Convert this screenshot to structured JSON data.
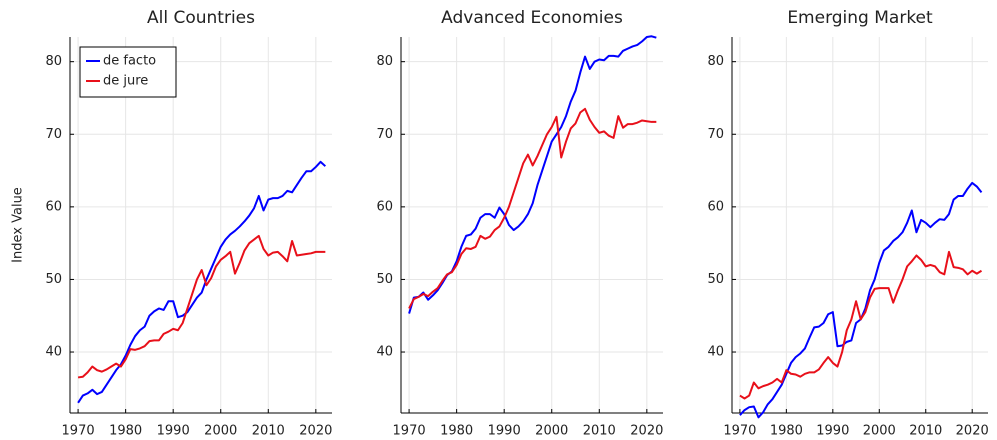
{
  "chart_data": [
    {
      "type": "line",
      "title": "All Countries",
      "ylabel": "Index Value",
      "x": [
        1970,
        1971,
        1972,
        1973,
        1974,
        1975,
        1976,
        1977,
        1978,
        1979,
        1980,
        1981,
        1982,
        1983,
        1984,
        1985,
        1986,
        1987,
        1988,
        1989,
        1990,
        1991,
        1992,
        1993,
        1994,
        1995,
        1996,
        1997,
        1998,
        1999,
        2000,
        2001,
        2002,
        2003,
        2004,
        2005,
        2006,
        2007,
        2008,
        2009,
        2010,
        2011,
        2012,
        2013,
        2014,
        2015,
        2016,
        2017,
        2018,
        2019,
        2020,
        2021,
        2022
      ],
      "series": [
        {
          "name": "de facto",
          "color": "#0000ff",
          "values": [
            33,
            34,
            34.3,
            34.8,
            34.2,
            34.5,
            35.5,
            36.5,
            37.5,
            38.3,
            39.5,
            41,
            42.2,
            43,
            43.5,
            45,
            45.6,
            46,
            45.8,
            47,
            47,
            44.8,
            45,
            45.5,
            46.5,
            47.5,
            48.2,
            50,
            51.5,
            53,
            54.5,
            55.5,
            56.2,
            56.7,
            57.3,
            58,
            58.8,
            59.8,
            61.5,
            59.5,
            61,
            61.2,
            61.2,
            61.5,
            62.2,
            62,
            63,
            64,
            64.9,
            64.9,
            65.5,
            66.2,
            65.6
          ]
        },
        {
          "name": "de jure",
          "color": "#e8101a",
          "values": [
            36.5,
            36.6,
            37.2,
            38,
            37.5,
            37.3,
            37.6,
            38,
            38.4,
            38,
            39,
            40.4,
            40.3,
            40.5,
            40.8,
            41.5,
            41.6,
            41.6,
            42.5,
            42.8,
            43.2,
            43,
            44,
            46,
            48,
            50,
            51.3,
            49.2,
            50.2,
            51.8,
            52.7,
            53.2,
            53.8,
            50.8,
            52.3,
            54,
            55,
            55.5,
            56,
            54.2,
            53.3,
            53.7,
            53.8,
            53.2,
            52.5,
            55.3,
            53.3,
            53.4,
            53.5,
            53.6,
            53.8,
            53.8,
            53.8
          ]
        }
      ],
      "xlim": [
        1968.3,
        2023.4
      ],
      "xticks": [
        1970,
        1980,
        1990,
        2000,
        2010,
        2020
      ],
      "ylim": [
        31.6,
        83.4
      ],
      "yticks": [
        40,
        50,
        60,
        70,
        80
      ],
      "grid": true,
      "legend": "top-left"
    },
    {
      "type": "line",
      "title": "Advanced Economies",
      "x": [
        1970,
        1971,
        1972,
        1973,
        1974,
        1975,
        1976,
        1977,
        1978,
        1979,
        1980,
        1981,
        1982,
        1983,
        1984,
        1985,
        1986,
        1987,
        1988,
        1989,
        1990,
        1991,
        1992,
        1993,
        1994,
        1995,
        1996,
        1997,
        1998,
        1999,
        2000,
        2001,
        2002,
        2003,
        2004,
        2005,
        2006,
        2007,
        2008,
        2009,
        2010,
        2011,
        2012,
        2013,
        2014,
        2015,
        2016,
        2017,
        2018,
        2019,
        2020,
        2021,
        2022
      ],
      "series": [
        {
          "name": "de facto",
          "color": "#0000ff",
          "values": [
            45.3,
            47.5,
            47.6,
            48.2,
            47.2,
            47.8,
            48.5,
            49.5,
            50.6,
            51.1,
            52.5,
            54.5,
            56,
            56.2,
            57,
            58.5,
            59,
            59,
            58.5,
            59.9,
            59,
            57.5,
            56.8,
            57.3,
            58,
            59,
            60.5,
            63,
            65,
            67,
            69,
            70,
            71,
            72.5,
            74.5,
            76,
            78.5,
            80.7,
            79,
            80,
            80.3,
            80.2,
            80.8,
            80.8,
            80.7,
            81.5,
            81.8,
            82.1,
            82.3,
            82.8,
            83.4,
            83.5,
            83.3
          ]
        },
        {
          "name": "de jure",
          "color": "#e8101a",
          "values": [
            46,
            47.3,
            47.6,
            48,
            47.7,
            48.3,
            48.8,
            49.8,
            50.7,
            51,
            52,
            53.5,
            54.3,
            54.2,
            54.5,
            56,
            55.6,
            55.9,
            56.8,
            57.3,
            58.5,
            60,
            62,
            64,
            66,
            67.2,
            65.7,
            67,
            68.5,
            70,
            71,
            72.4,
            66.8,
            69,
            70.8,
            71.5,
            73,
            73.5,
            72,
            71,
            70.2,
            70.4,
            69.8,
            69.5,
            72.5,
            70.9,
            71.4,
            71.4,
            71.6,
            71.9,
            71.8,
            71.7,
            71.7
          ]
        }
      ],
      "xlim": [
        1968.3,
        2023.4
      ],
      "xticks": [
        1970,
        1980,
        1990,
        2000,
        2010,
        2020
      ],
      "ylim": [
        31.6,
        83.4
      ],
      "yticks": [
        40,
        50,
        60,
        70,
        80
      ],
      "grid": true
    },
    {
      "type": "line",
      "title": "Emerging Market",
      "x": [
        1970,
        1971,
        1972,
        1973,
        1974,
        1975,
        1976,
        1977,
        1978,
        1979,
        1980,
        1981,
        1982,
        1983,
        1984,
        1985,
        1986,
        1987,
        1988,
        1989,
        1990,
        1991,
        1992,
        1993,
        1994,
        1995,
        1996,
        1997,
        1998,
        1999,
        2000,
        2001,
        2002,
        2003,
        2004,
        2005,
        2006,
        2007,
        2008,
        2009,
        2010,
        2011,
        2012,
        2013,
        2014,
        2015,
        2016,
        2017,
        2018,
        2019,
        2020,
        2021,
        2022
      ],
      "series": [
        {
          "name": "de facto",
          "color": "#0000ff",
          "values": [
            31.3,
            32,
            32.4,
            32.5,
            31,
            31.7,
            32.8,
            33.5,
            34.5,
            35.5,
            37,
            38.5,
            39.3,
            39.8,
            40.5,
            42,
            43.4,
            43.5,
            44,
            45.2,
            45.5,
            40.8,
            40.9,
            41.4,
            41.6,
            44,
            44.5,
            46,
            48.5,
            50,
            52.3,
            54,
            54.5,
            55.3,
            55.8,
            56.5,
            57.8,
            59.5,
            56.5,
            58.2,
            57.8,
            57.2,
            57.8,
            58.3,
            58.2,
            59,
            61,
            61.5,
            61.5,
            62.5,
            63.3,
            62.8,
            62
          ]
        },
        {
          "name": "de jure",
          "color": "#e8101a",
          "values": [
            34,
            33.6,
            34,
            35.8,
            35,
            35.3,
            35.5,
            35.8,
            36.3,
            35.8,
            37.5,
            37,
            36.9,
            36.6,
            37,
            37.2,
            37.2,
            37.6,
            38.5,
            39.3,
            38.5,
            38,
            40,
            43,
            44.5,
            47,
            44.5,
            45.5,
            47.5,
            48.7,
            48.8,
            48.8,
            48.8,
            46.8,
            48.5,
            50,
            51.8,
            52.5,
            53.3,
            52.7,
            51.8,
            52,
            51.8,
            51,
            50.7,
            53.8,
            51.7,
            51.6,
            51.4,
            50.7,
            51.2,
            50.8,
            51.2
          ]
        }
      ],
      "xlim": [
        1968.3,
        2023.4
      ],
      "xticks": [
        1970,
        1980,
        1990,
        2000,
        2010,
        2020
      ],
      "ylim": [
        31.6,
        83.4
      ],
      "yticks": [
        40,
        50,
        60,
        70,
        80
      ],
      "grid": true
    }
  ]
}
